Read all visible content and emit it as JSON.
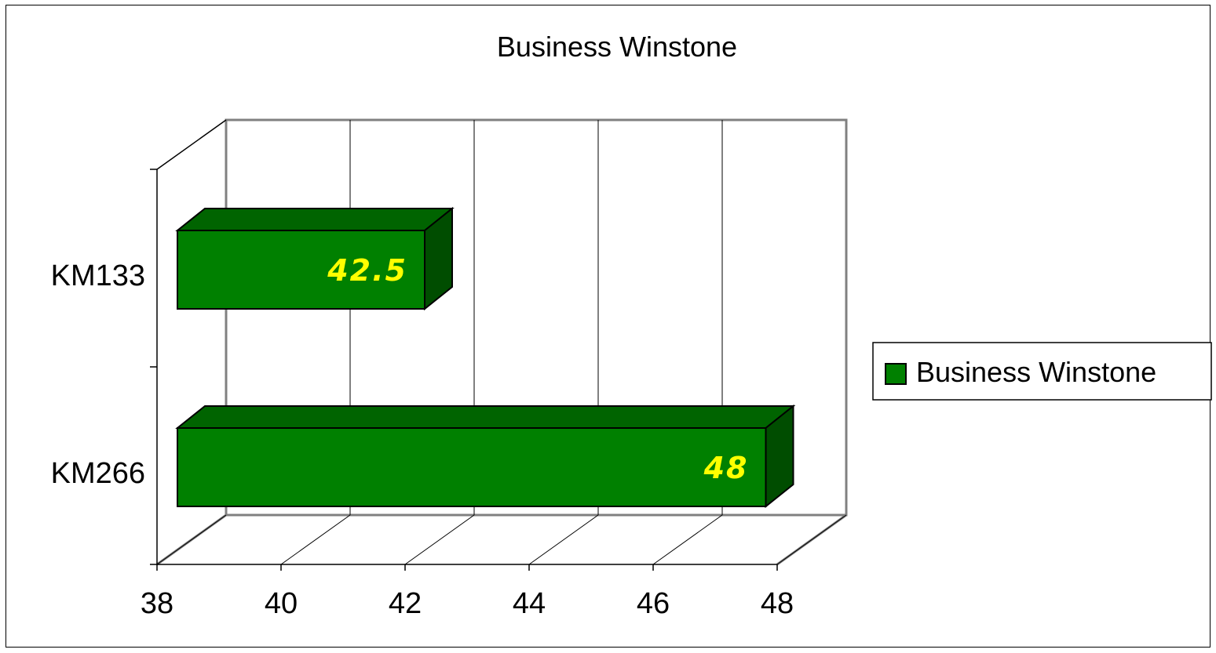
{
  "chart_data": {
    "type": "bar",
    "orientation": "horizontal",
    "style": "3d",
    "title": "Business Winstone",
    "categories": [
      "KM133",
      "KM266"
    ],
    "series": [
      {
        "name": "Business Winstone",
        "values": [
          42.5,
          48
        ],
        "color": "#008000"
      }
    ],
    "data_labels": [
      "42.5",
      "48"
    ],
    "xlim": [
      38,
      48
    ],
    "x_ticks": [
      "38",
      "40",
      "42",
      "44",
      "46",
      "48"
    ],
    "grid": true,
    "legend": "right"
  }
}
